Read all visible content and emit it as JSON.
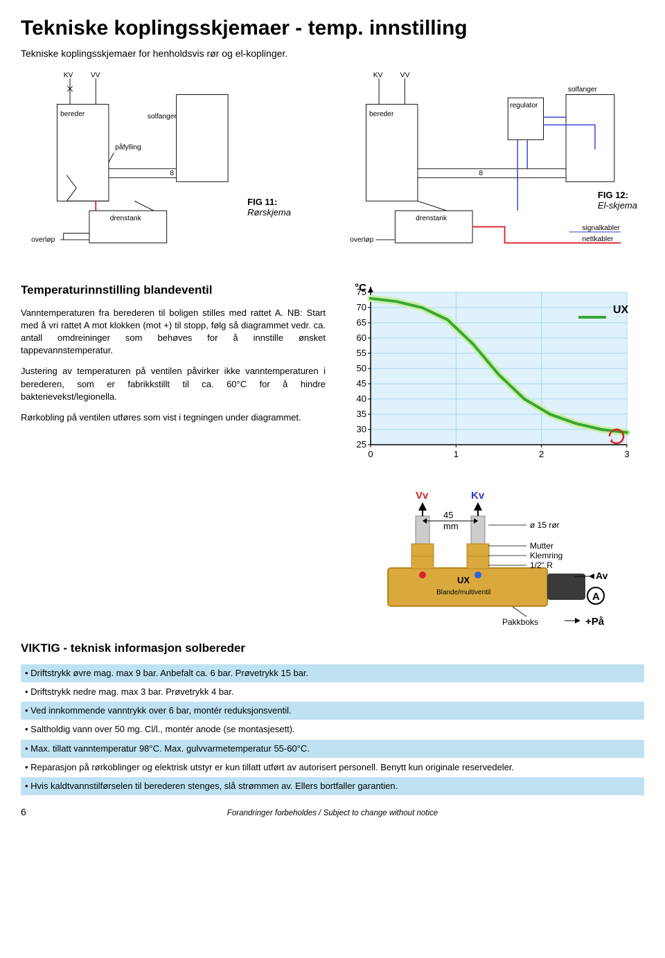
{
  "header": {
    "title": "Tekniske koplingsskjemaer - temp. innstilling",
    "subtitle": "Tekniske koplingsskjemaer for henholdsvis rør og el-koplinger."
  },
  "diagrams": {
    "labels": {
      "KV": "KV",
      "VV": "VV",
      "bereder": "bereder",
      "solfanger": "solfanger",
      "pafylling": "påfylling",
      "drenstank": "drenstank",
      "overlop": "overløp",
      "regulator": "regulator",
      "signalkabler": "signalkabler",
      "nettkabler": "nettkabler"
    },
    "fig11": {
      "num": "FIG 11:",
      "title": "Rørskjema"
    },
    "fig12": {
      "num": "FIG 12:",
      "title": "El-skjema"
    },
    "colors": {
      "black": "#000000",
      "red": "#d8232a",
      "blue": "#2a3bd6",
      "gray": "#888888"
    }
  },
  "temp_section": {
    "heading": "Temperaturinnstilling blandeventil",
    "p1": "Vanntemperaturen fra berederen til boligen stilles med rattet A. NB: Start med å vri rattet A mot klokken (mot +) til stopp, følg så diagrammet vedr. ca. antall omdreininger som behøves for å innstille ønsket tappevannstemperatur.",
    "p2": "Justering av temperaturen på ventilen påvirker ikke vanntemperaturen i berederen, som er fabrikkstillt til ca. 60°C for å hindre bakterievekst/legionella.",
    "p3": "Rørkobling på ventilen utføres som vist i tegningen under diagrammet."
  },
  "chart": {
    "type": "line",
    "y_label": "°C",
    "y_ticks": [
      25,
      30,
      35,
      40,
      45,
      50,
      55,
      60,
      65,
      70,
      75
    ],
    "ylim": [
      25,
      75
    ],
    "x_ticks": [
      0,
      1,
      2,
      3
    ],
    "xlim": [
      0,
      3
    ],
    "series_label": "UX",
    "series_color": "#3aa535",
    "series_glow": "#c8f0a8",
    "line_width": 4,
    "grid_color": "#a8d8ef",
    "bg_color": "#dff1fa",
    "axis_color": "#000000",
    "rotation_icon_color": "#d8232a",
    "data": [
      {
        "x": 0.0,
        "y": 73
      },
      {
        "x": 0.3,
        "y": 72
      },
      {
        "x": 0.6,
        "y": 70
      },
      {
        "x": 0.9,
        "y": 66
      },
      {
        "x": 1.2,
        "y": 58
      },
      {
        "x": 1.5,
        "y": 48
      },
      {
        "x": 1.8,
        "y": 40
      },
      {
        "x": 2.1,
        "y": 35
      },
      {
        "x": 2.4,
        "y": 32
      },
      {
        "x": 2.7,
        "y": 30
      },
      {
        "x": 3.0,
        "y": 29
      }
    ]
  },
  "valve": {
    "vv": "Vv",
    "kv": "Kv",
    "dim_45mm": "45",
    "mm": "mm",
    "pipe": "ø 15 rør",
    "mutter": "Mutter",
    "klemring": "Klemring",
    "halfr": "1/2\" R",
    "av": "Av",
    "pa": "På",
    "plus": "+",
    "A": "A",
    "body_label": "UX",
    "sublabel": "Blande/multiventil",
    "pakkboks": "Pakkboks",
    "colors": {
      "brass": "#d9a93e",
      "brass_dk": "#b8851f",
      "red": "#d8232a",
      "blue": "#2a62d6",
      "dial": "#3a3a3a"
    }
  },
  "info": {
    "heading": "VIKTIG - teknisk informasjon solbereder",
    "items": [
      "Driftstrykk øvre mag. max 9 bar. Anbefalt ca. 6 bar. Prøvetrykk 15 bar.",
      "Driftstrykk nedre mag. max 3 bar. Prøvetrykk 4 bar.",
      "Ved innkommende vanntrykk over 6 bar, montér reduksjonsventil.",
      "Saltholdig vann over 50 mg. Cl/l., montér anode (se montasjesett).",
      "Max. tillatt vanntemperatur 98°C. Max. gulvvarmetemperatur 55-60°C.",
      "Reparasjon på rørkoblinger og elektrisk utstyr er kun tillatt utført av autorisert personell. Benytt kun originale reservedeler.",
      "Hvis kaldtvannstilførselen til berederen stenges, slå strømmen av. Ellers bortfaller garantien."
    ]
  },
  "footer": {
    "text": "Forandringer forbeholdes / Subject to change without notice",
    "page": "6"
  }
}
